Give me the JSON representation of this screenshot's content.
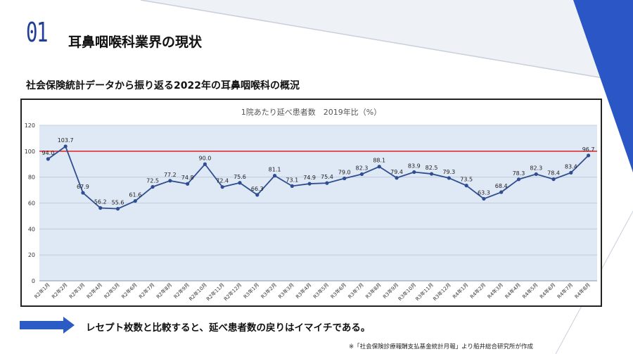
{
  "slide": {
    "number": "01",
    "title": "耳鼻咽喉科業界の現状",
    "subtitle": "社会保険統計データから振り返る2022年の耳鼻咽喉科の概況"
  },
  "chart_data": {
    "type": "line",
    "title": "1院あたり延べ患者数　2019年比（%）",
    "categories": [
      "R2年1月",
      "R2年2月",
      "R2年3月",
      "R2年4月",
      "R2年5月",
      "R2年6月",
      "R2年7月",
      "R2年8月",
      "R2年9月",
      "R2年10月",
      "R2年11月",
      "R2年12月",
      "R3年1月",
      "R3年2月",
      "R3年3月",
      "R3年4月",
      "R3年5月",
      "R3年6月",
      "R3年7月",
      "R3年8月",
      "R3年9月",
      "R3年10月",
      "R3年11月",
      "R3年12月",
      "R4年1月",
      "R4年2月",
      "R4年3月",
      "R4年4月",
      "R4年5月",
      "R4年6月",
      "R4年7月",
      "R4年8月"
    ],
    "values": [
      94.0,
      103.7,
      67.9,
      56.2,
      55.6,
      61.6,
      72.5,
      77.2,
      74.8,
      90.0,
      72.4,
      75.6,
      66.3,
      81.1,
      73.1,
      74.9,
      75.4,
      79.0,
      82.3,
      88.1,
      79.4,
      83.9,
      82.5,
      79.3,
      73.5,
      63.3,
      68.4,
      78.3,
      82.3,
      78.4,
      83.4,
      96.7
    ],
    "value_labels": [
      "94.0",
      "103.7",
      "67.9",
      "56.2",
      "55.6",
      "61.6",
      "72.5",
      "77.2",
      "74.8",
      "90.0",
      "72.4",
      "75.6",
      "66.3",
      "81.1",
      "73.1",
      "74.9",
      "75.4",
      "79.0",
      "82.3",
      "88.1",
      "79.4",
      "83.9",
      "82.5",
      "79.3",
      "73.5",
      "63.3",
      "68.4",
      "78.3",
      "82.3",
      "78.4",
      "83.4",
      "96.7"
    ],
    "ylim": [
      0,
      120
    ],
    "yticks": [
      "0",
      "20",
      "40",
      "60",
      "80",
      "100",
      "120"
    ],
    "reference_line": 100,
    "grid": true,
    "colors": {
      "line": "#2f4e8f",
      "reference": "#e02020",
      "plot_bg": "#dfe8f5",
      "grid": "#b9c6d8"
    }
  },
  "footer": {
    "conclusion": "レセプト枚数と比較すると、延べ患者数の戻りはイマイチである。",
    "source": "※「社会保険診療報酬支払基金統計月報」より船井総合研究所が作成"
  },
  "icons": {
    "arrow": "right-arrow-icon"
  }
}
